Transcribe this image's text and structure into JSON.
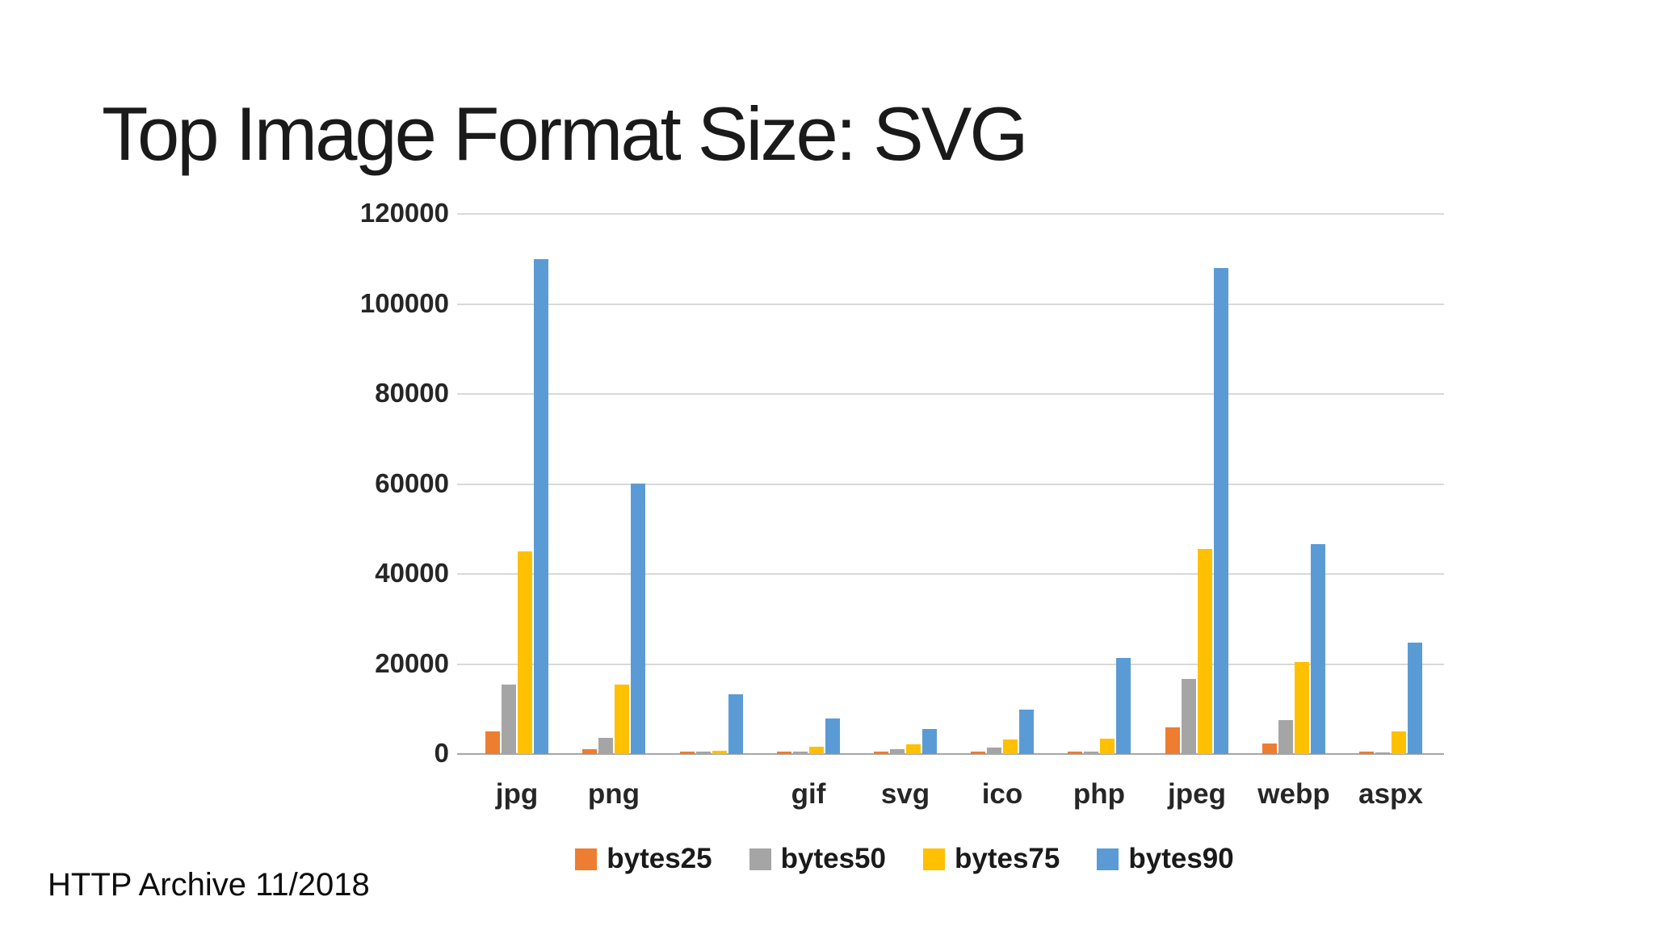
{
  "title": "Top Image Format Size: SVG",
  "footer": "HTTP Archive 11/2018",
  "colors": {
    "bytes25": "#ED7D31",
    "bytes50": "#A5A5A5",
    "bytes75": "#FFC000",
    "bytes90": "#5B9BD5",
    "gridline": "#D9D9D9",
    "axis_line": "#A6A6A6",
    "label_text": "#262626"
  },
  "chart_data": {
    "type": "bar",
    "title": "Top Image Format Size: SVG",
    "xlabel": "",
    "ylabel": "",
    "categories": [
      "jpg",
      "png",
      "",
      "gif",
      "svg",
      "ico",
      "php",
      "jpeg",
      "webp",
      "aspx"
    ],
    "series": [
      {
        "name": "bytes25",
        "color": "#ED7D31",
        "values": [
          5000,
          1000,
          600,
          600,
          600,
          600,
          600,
          6000,
          2400,
          600
        ]
      },
      {
        "name": "bytes50",
        "color": "#A5A5A5",
        "values": [
          15500,
          3600,
          550,
          600,
          1100,
          1400,
          600,
          16700,
          7500,
          400
        ]
      },
      {
        "name": "bytes75",
        "color": "#FFC000",
        "values": [
          45000,
          15500,
          700,
          1700,
          2100,
          3300,
          3400,
          45500,
          20500,
          5100
        ]
      },
      {
        "name": "bytes90",
        "color": "#5B9BD5",
        "values": [
          110000,
          60000,
          13300,
          7900,
          5500,
          9900,
          21300,
          108000,
          46700,
          24800
        ]
      }
    ],
    "ylim": [
      0,
      120000
    ],
    "ytick_step": 20000,
    "ytick_labels": [
      "0",
      "20000",
      "40000",
      "60000",
      "80000",
      "100000",
      "120000"
    ],
    "grid": true,
    "legend_position": "bottom",
    "legend_entries": [
      "bytes25",
      "bytes50",
      "bytes75",
      "bytes90"
    ]
  }
}
